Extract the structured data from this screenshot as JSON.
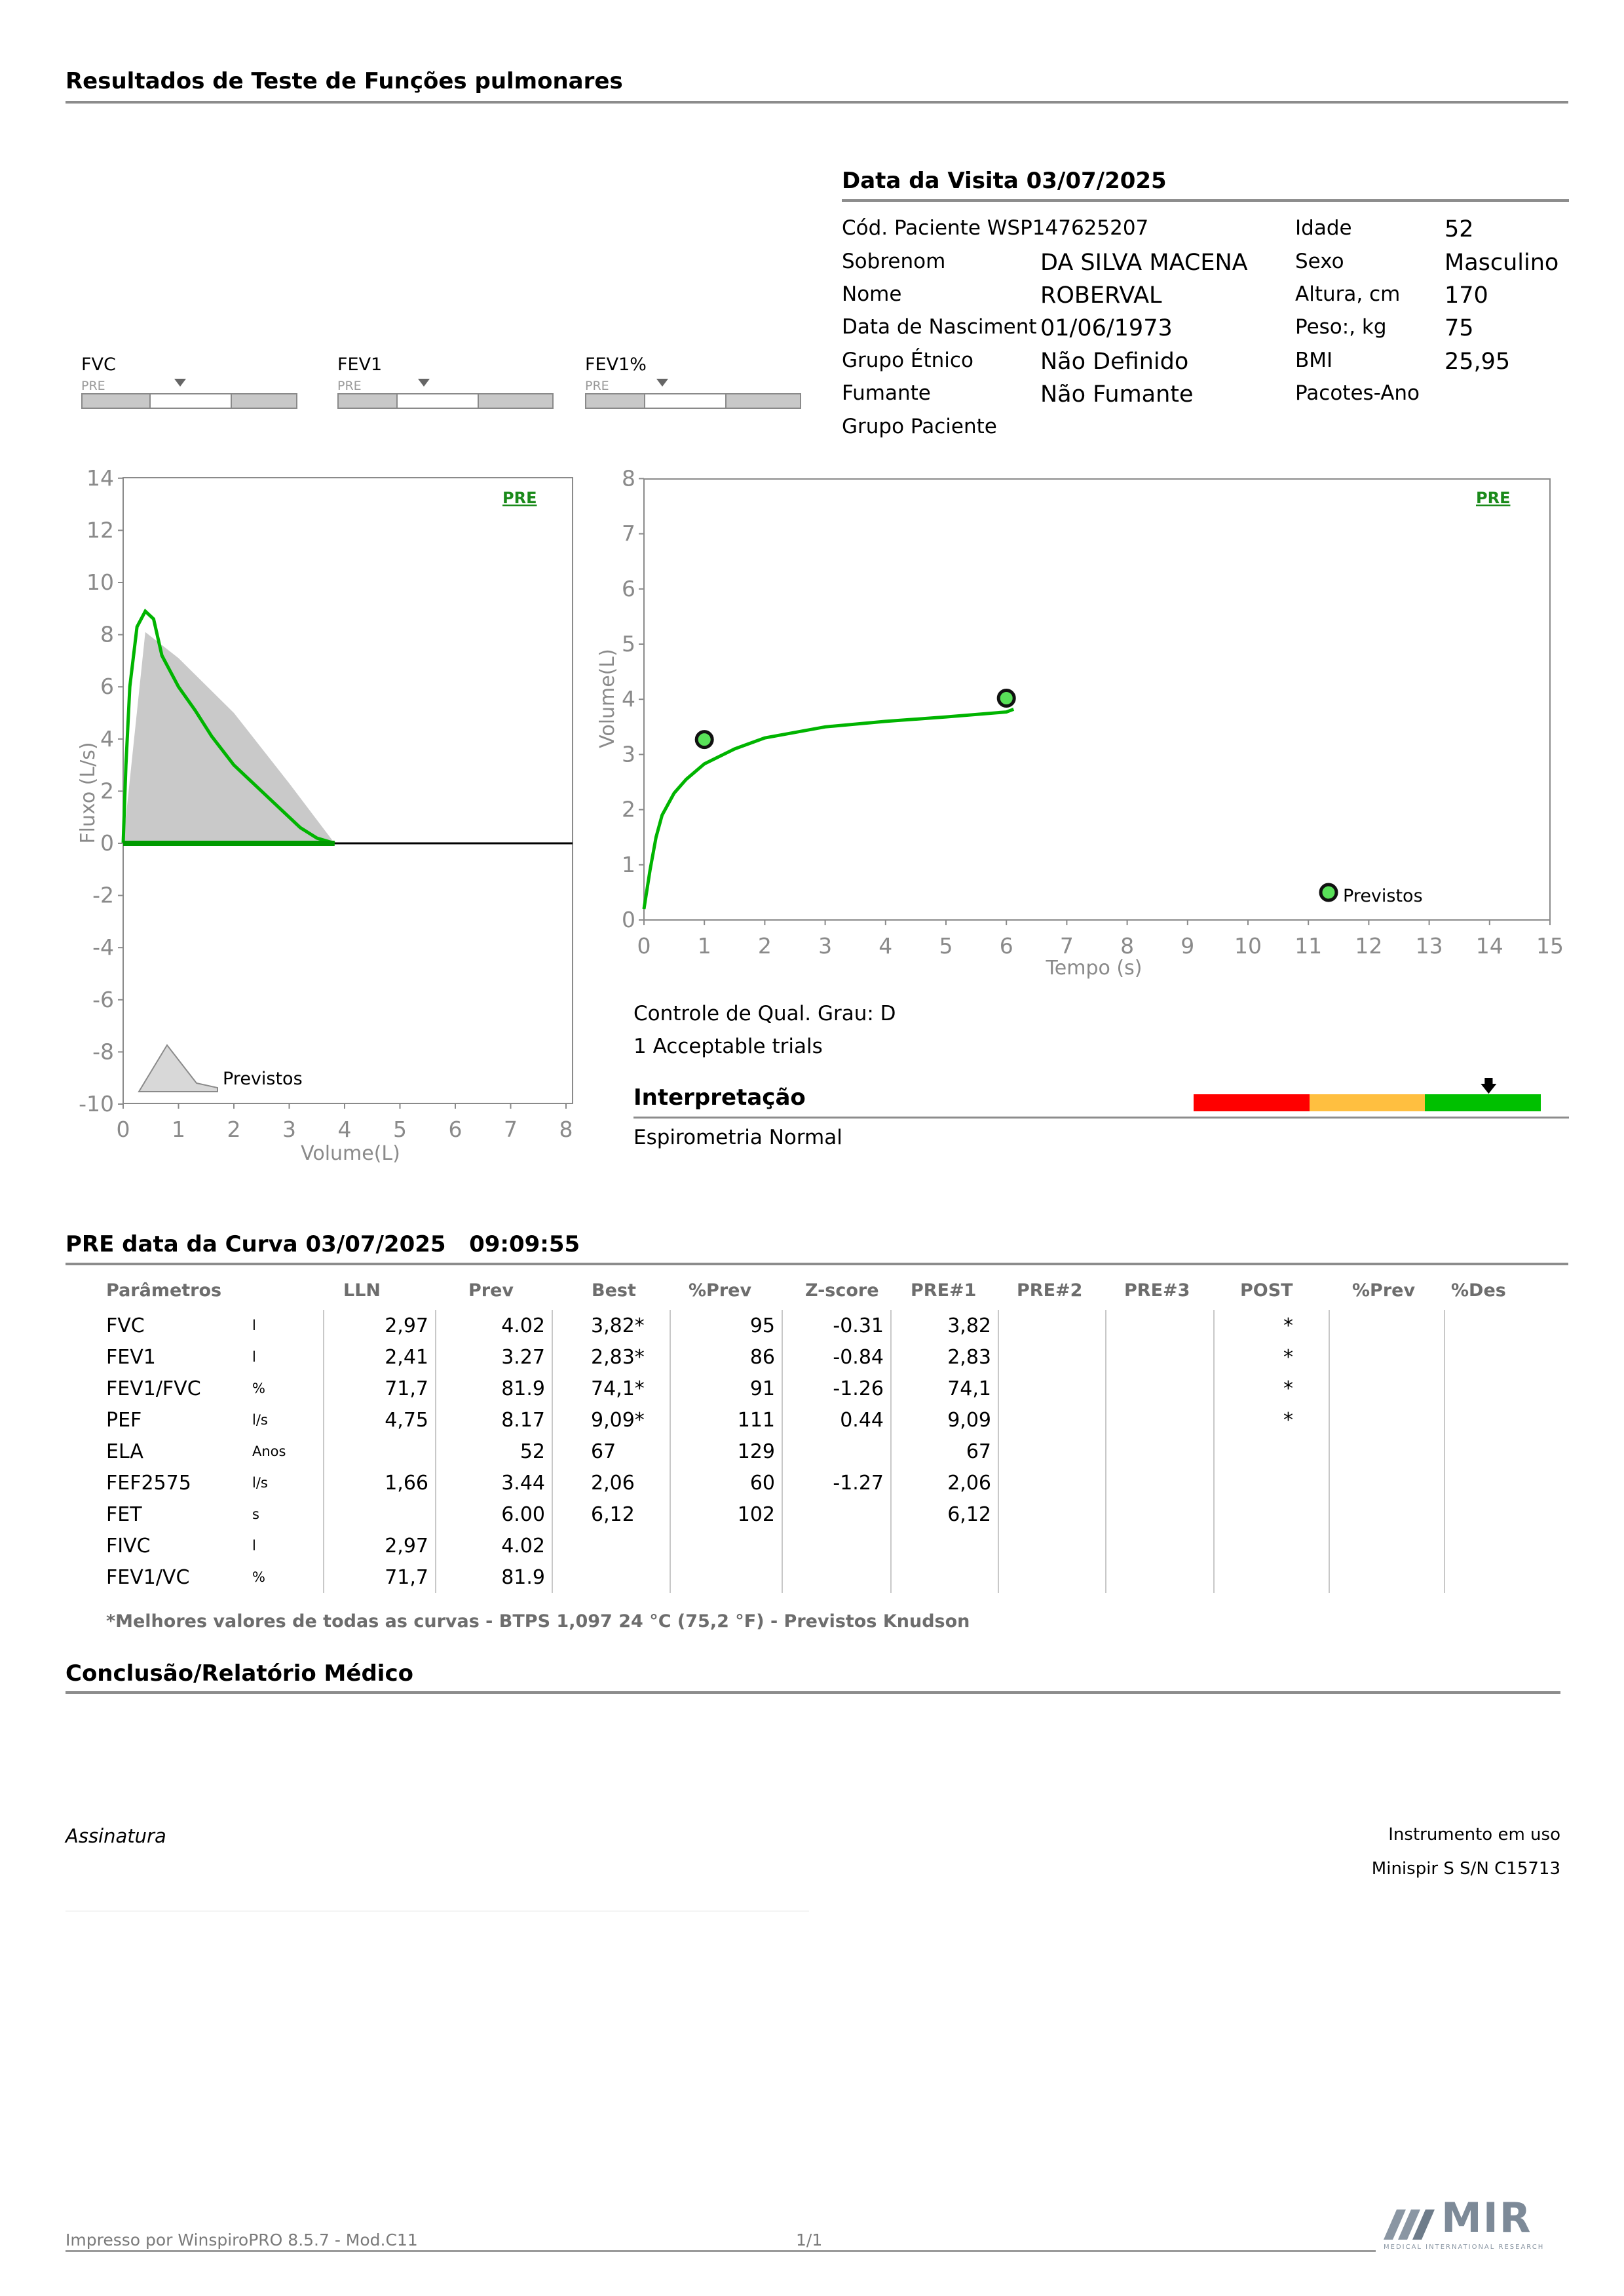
{
  "header": {
    "title": "Resultados de Teste de Funções pulmonares"
  },
  "visit": {
    "title": "Data da Visita 03/07/2025"
  },
  "patient": {
    "left": [
      {
        "label": "Cód. Paciente WSP147625207",
        "value": ""
      },
      {
        "label": "Sobrenom",
        "value": "DA SILVA MACENA"
      },
      {
        "label": "Nome",
        "value": "ROBERVAL"
      },
      {
        "label": "Data de Nasciment",
        "value": "01/06/1973"
      },
      {
        "label": "Grupo Étnico",
        "value": "Não Definido"
      },
      {
        "label": "Fumante",
        "value": "Não Fumante"
      },
      {
        "label": "Grupo Paciente",
        "value": ""
      }
    ],
    "right": [
      {
        "label": "Idade",
        "value": "52"
      },
      {
        "label": "Sexo",
        "value": "Masculino"
      },
      {
        "label": "Altura, cm",
        "value": "170"
      },
      {
        "label": "Peso:, kg",
        "value": "75"
      },
      {
        "label": "BMI",
        "value": "25,95"
      },
      {
        "label": "Pacotes-Ano",
        "value": ""
      }
    ]
  },
  "gauges": [
    {
      "label": "FVC",
      "sub": "PRE"
    },
    {
      "label": "FEV1",
      "sub": "PRE"
    },
    {
      "label": "FEV1%",
      "sub": "PRE"
    }
  ],
  "flow_volume": {
    "tag": "PRE",
    "ylabel": "Fluxo (L/s)",
    "xlabel": "Volume(L)",
    "yticks": [
      "14",
      "12",
      "10",
      "8",
      "6",
      "4",
      "2",
      "0",
      "-2",
      "-4",
      "-6",
      "-8",
      "-10"
    ],
    "xticks": [
      "0",
      "1",
      "2",
      "3",
      "4",
      "5",
      "6",
      "7",
      "8"
    ],
    "legend": "Previstos",
    "predicted_area": [
      [
        0,
        0
      ],
      [
        0.4,
        8.1
      ],
      [
        1,
        7.1
      ],
      [
        2,
        5.0
      ],
      [
        3,
        2.3
      ],
      [
        3.82,
        0
      ]
    ],
    "measured_curve": [
      [
        0,
        0
      ],
      [
        0.05,
        3
      ],
      [
        0.12,
        6
      ],
      [
        0.25,
        8.3
      ],
      [
        0.4,
        8.9
      ],
      [
        0.55,
        8.6
      ],
      [
        0.7,
        7.2
      ],
      [
        1,
        6.0
      ],
      [
        1.3,
        5.1
      ],
      [
        1.6,
        4.1
      ],
      [
        2,
        3.0
      ],
      [
        2.4,
        2.2
      ],
      [
        2.8,
        1.4
      ],
      [
        3.2,
        0.6
      ],
      [
        3.5,
        0.2
      ],
      [
        3.82,
        0
      ]
    ]
  },
  "volume_time": {
    "tag": "PRE",
    "ylabel": "Volume(L)",
    "xlabel": "Tempo (s)",
    "yticks": [
      "8",
      "7",
      "6",
      "5",
      "4",
      "3",
      "2",
      "1",
      "0"
    ],
    "xticks": [
      "0",
      "1",
      "2",
      "3",
      "4",
      "5",
      "6",
      "7",
      "8",
      "9",
      "10",
      "11",
      "12",
      "13",
      "14",
      "15"
    ],
    "legend": "Previstos",
    "predicted_points": [
      [
        1,
        3.27
      ],
      [
        6,
        4.02
      ]
    ],
    "curve": [
      [
        0,
        0.2
      ],
      [
        0.1,
        0.9
      ],
      [
        0.2,
        1.5
      ],
      [
        0.3,
        1.9
      ],
      [
        0.5,
        2.3
      ],
      [
        0.7,
        2.55
      ],
      [
        1,
        2.83
      ],
      [
        1.5,
        3.1
      ],
      [
        2,
        3.3
      ],
      [
        3,
        3.5
      ],
      [
        4,
        3.6
      ],
      [
        5,
        3.68
      ],
      [
        6,
        3.77
      ],
      [
        6.12,
        3.82
      ]
    ]
  },
  "quality": {
    "grade": "Controle de Qual. Grau: D",
    "trials": "1 Acceptable trials"
  },
  "interpretation": {
    "title": "Interpretação",
    "text": "Espirometria Normal",
    "scale_colors": [
      "#ff0000",
      "#ffbf40",
      "#00c000"
    ]
  },
  "curve": {
    "title": "PRE data da Curva 03/07/2025   09:09:55"
  },
  "table": {
    "headers": [
      "Parâmetros",
      "LLN",
      "Prev",
      "Best",
      "%Prev",
      "Z-score",
      "PRE#1",
      "PRE#2",
      "PRE#3",
      "POST",
      "%Prev",
      "%Des"
    ],
    "rows": [
      {
        "name": "FVC",
        "unit": "l",
        "lln": "2,97",
        "prev": "4.02",
        "best": "3,82*",
        "pprev": "95",
        "z": "-0.31",
        "pre1": "3,82",
        "post": "*"
      },
      {
        "name": "FEV1",
        "unit": "l",
        "lln": "2,41",
        "prev": "3.27",
        "best": "2,83*",
        "pprev": "86",
        "z": "-0.84",
        "pre1": "2,83",
        "post": "*"
      },
      {
        "name": "FEV1/FVC",
        "unit": "%",
        "lln": "71,7",
        "prev": "81.9",
        "best": "74,1*",
        "pprev": "91",
        "z": "-1.26",
        "pre1": "74,1",
        "post": "*"
      },
      {
        "name": "PEF",
        "unit": "l/s",
        "lln": "4,75",
        "prev": "8.17",
        "best": "9,09*",
        "pprev": "111",
        "z": "0.44",
        "pre1": "9,09",
        "post": "*"
      },
      {
        "name": "ELA",
        "unit": "Anos",
        "lln": "",
        "prev": "52",
        "best": "67",
        "pprev": "129",
        "z": "",
        "pre1": "67",
        "post": ""
      },
      {
        "name": "FEF2575",
        "unit": "l/s",
        "lln": "1,66",
        "prev": "3.44",
        "best": "2,06",
        "pprev": "60",
        "z": "-1.27",
        "pre1": "2,06",
        "post": ""
      },
      {
        "name": "FET",
        "unit": "s",
        "lln": "",
        "prev": "6.00",
        "best": "6,12",
        "pprev": "102",
        "z": "",
        "pre1": "6,12",
        "post": ""
      },
      {
        "name": "FIVC",
        "unit": "l",
        "lln": "2,97",
        "prev": "4.02",
        "best": "",
        "pprev": "",
        "z": "",
        "pre1": "",
        "post": ""
      },
      {
        "name": "FEV1/VC",
        "unit": "%",
        "lln": "71,7",
        "prev": "81.9",
        "best": "",
        "pprev": "",
        "z": "",
        "pre1": "",
        "post": ""
      }
    ],
    "footnote": "*Melhores valores de todas as curvas - BTPS  1,097  24 °C  (75,2 °F) - Previstos Knudson"
  },
  "conclusion": {
    "title": "Conclusão/Relatório Médico"
  },
  "signature": {
    "label": "Assinatura"
  },
  "instrument": {
    "line1": "Instrumento em uso",
    "line2": "Minispir S S/N C15713"
  },
  "footer": {
    "printed_by": "Impresso por WinspiroPRO  8.5.7 - Mod.C11",
    "page": "1/1",
    "logo_text": "MIR",
    "logo_sub": "MEDICAL INTERNATIONAL RESEARCH"
  }
}
